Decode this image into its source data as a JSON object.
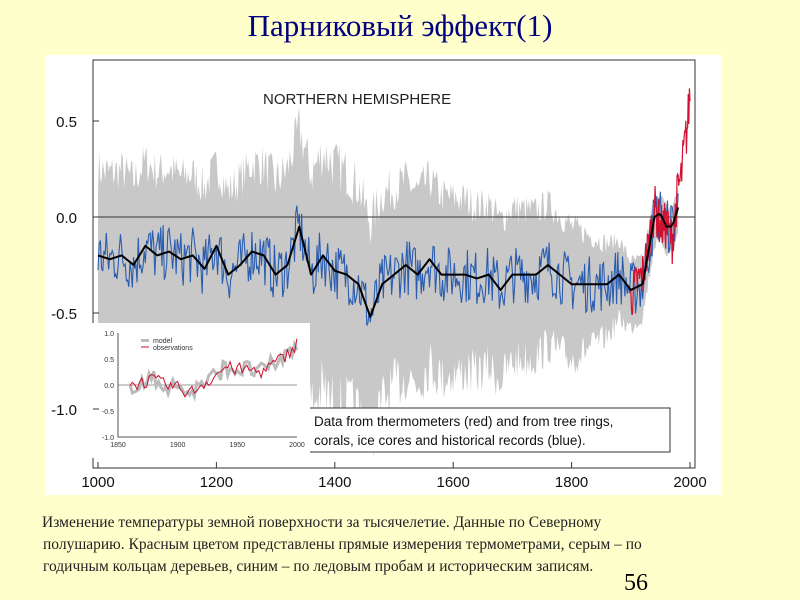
{
  "slide": {
    "title": "Парниковый эффект(1)",
    "caption_lines": [
      "Изменение температуры земной поверхности за тысячелетие. Данные по Северному",
      "полушарию. Красным цветом представлены прямые измерения термометрами, серым – по",
      "годичным кольцам деревьев, синим – по ледовым пробам и историческим записям."
    ],
    "page_number": "56"
  },
  "chart_data": [
    {
      "type": "line",
      "title": "NORTHERN HEMISPHERE",
      "annotation_lines": [
        "Data from thermometers (red) and from tree rings,",
        "corals, ice cores and historical records (blue)."
      ],
      "xlim": [
        1000,
        2000
      ],
      "ylim": [
        -1.25,
        0.8
      ],
      "x_ticks": [
        1000,
        1200,
        1400,
        1600,
        1800,
        2000
      ],
      "x_tick_labels": [
        "1000",
        "1200",
        "1400",
        "1600",
        "1800",
        "2000"
      ],
      "y_ticks": [
        0.5,
        0.0,
        -0.5,
        -1.0
      ],
      "y_tick_labels": [
        "0.5",
        "0.0",
        "-0.5",
        "-1.0"
      ],
      "colors": {
        "smooth": "#000000",
        "proxy": "#2a5db0",
        "thermometer": "#d01030",
        "uncertainty": "#c8c8c8"
      },
      "series": [
        {
          "name": "smoothed (50-yr)",
          "x": [
            1000,
            1020,
            1040,
            1060,
            1080,
            1100,
            1120,
            1140,
            1160,
            1180,
            1200,
            1220,
            1240,
            1260,
            1280,
            1300,
            1320,
            1340,
            1360,
            1380,
            1400,
            1420,
            1440,
            1460,
            1480,
            1500,
            1520,
            1540,
            1560,
            1580,
            1600,
            1620,
            1640,
            1660,
            1680,
            1700,
            1720,
            1740,
            1760,
            1780,
            1800,
            1820,
            1840,
            1860,
            1880,
            1900,
            1920,
            1940,
            1950,
            1960,
            1970,
            1980
          ],
          "y": [
            -0.2,
            -0.22,
            -0.2,
            -0.25,
            -0.15,
            -0.2,
            -0.18,
            -0.22,
            -0.2,
            -0.27,
            -0.15,
            -0.3,
            -0.25,
            -0.18,
            -0.2,
            -0.3,
            -0.25,
            -0.05,
            -0.3,
            -0.2,
            -0.28,
            -0.3,
            -0.35,
            -0.52,
            -0.35,
            -0.3,
            -0.25,
            -0.3,
            -0.22,
            -0.3,
            -0.3,
            -0.3,
            -0.32,
            -0.3,
            -0.38,
            -0.3,
            -0.3,
            -0.3,
            -0.25,
            -0.3,
            -0.35,
            -0.35,
            -0.35,
            -0.35,
            -0.3,
            -0.38,
            -0.35,
            0.0,
            0.02,
            -0.05,
            -0.05,
            0.05
          ]
        },
        {
          "name": "thermometers (red)",
          "x": [
            1900,
            1910,
            1920,
            1930,
            1940,
            1950,
            1960,
            1970,
            1980,
            1985,
            1990,
            1995,
            2000
          ],
          "y": [
            -0.42,
            -0.35,
            -0.3,
            -0.15,
            0.05,
            -0.05,
            -0.05,
            -0.12,
            0.15,
            0.2,
            0.35,
            0.45,
            0.65
          ]
        },
        {
          "name": "uncertainty half-width",
          "x": [
            1000,
            1200,
            1400,
            1500,
            1600,
            1800,
            1900,
            1950
          ],
          "y": [
            0.45,
            0.42,
            0.55,
            0.45,
            0.4,
            0.3,
            0.15,
            0.1
          ]
        }
      ]
    },
    {
      "type": "line",
      "legend": [
        "model",
        "observations"
      ],
      "legend_placement": "top-left",
      "xlim": [
        1850,
        2000
      ],
      "ylim": [
        -1.0,
        1.0
      ],
      "x_tick_labels": [
        "1850",
        "1900",
        "1950",
        "2000"
      ],
      "y_tick_labels": [
        "1.0",
        "0.5",
        "0.0",
        "-0.5",
        "-1.0"
      ],
      "series": [
        {
          "name": "observations",
          "x": [
            1860,
            1870,
            1880,
            1890,
            1900,
            1910,
            1920,
            1930,
            1940,
            1950,
            1960,
            1970,
            1980,
            1990,
            2000
          ],
          "y": [
            0.0,
            0.05,
            0.1,
            0.0,
            -0.05,
            -0.15,
            0.0,
            0.15,
            0.35,
            0.3,
            0.3,
            0.25,
            0.4,
            0.55,
            0.8
          ]
        }
      ]
    }
  ]
}
